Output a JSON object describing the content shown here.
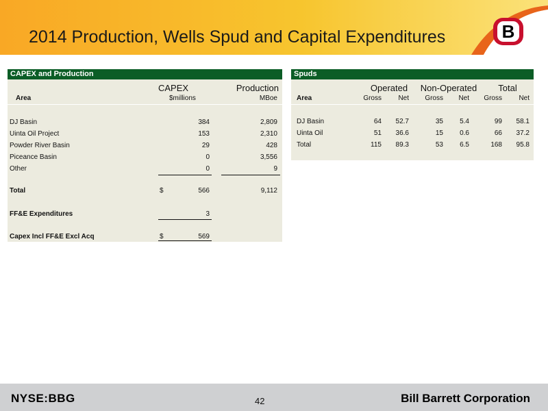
{
  "header": {
    "title": "2014 Production, Wells Spud and Capital Expenditures",
    "logo_letter": "B"
  },
  "capex_panel": {
    "heading": "CAPEX and Production",
    "group_headers": [
      "CAPEX",
      "Production"
    ],
    "col_headers": {
      "area": "Area",
      "capex": "$millions",
      "production": "MBoe"
    },
    "rows": [
      {
        "area": "DJ Basin",
        "capex": "384",
        "production": "2,809"
      },
      {
        "area": "Uinta Oil Project",
        "capex": "153",
        "production": "2,310"
      },
      {
        "area": "Powder River Basin",
        "capex": "29",
        "production": "428"
      },
      {
        "area": "Piceance Basin",
        "capex": "0",
        "production": "3,556"
      },
      {
        "area": "Other",
        "capex": "0",
        "production": "9"
      }
    ],
    "total": {
      "label": "Total",
      "currency": "$",
      "capex": "566",
      "production": "9,112"
    },
    "ffe": {
      "label": "FF&E Expenditures",
      "capex": "3"
    },
    "capex_incl": {
      "label": "Capex Incl FF&E Excl Acq",
      "currency": "$",
      "capex": "569"
    }
  },
  "spuds_panel": {
    "heading": "Spuds",
    "group_headers": [
      "Operated",
      "Non-Operated",
      "Total"
    ],
    "col_headers": [
      "Area",
      "Gross",
      "Net",
      "Gross",
      "Net",
      "Gross",
      "Net"
    ],
    "rows": [
      {
        "area": "DJ Basin",
        "values": [
          "64",
          "52.7",
          "35",
          "5.4",
          "99",
          "58.1"
        ]
      },
      {
        "area": "Uinta Oil",
        "values": [
          "51",
          "36.6",
          "15",
          "0.6",
          "66",
          "37.2"
        ]
      },
      {
        "area": "Total",
        "values": [
          "115",
          "89.3",
          "53",
          "6.5",
          "168",
          "95.8"
        ]
      }
    ]
  },
  "footer": {
    "ticker": "NYSE:BBG",
    "page_number": "42",
    "company": "Bill Barrett Corporation"
  },
  "colors": {
    "header_orange": "#f39c12",
    "header_yellow": "#f9d64a",
    "panel_green": "#0b5d26",
    "panel_bg": "#ecebdf",
    "logo_red": "#c8102e"
  }
}
